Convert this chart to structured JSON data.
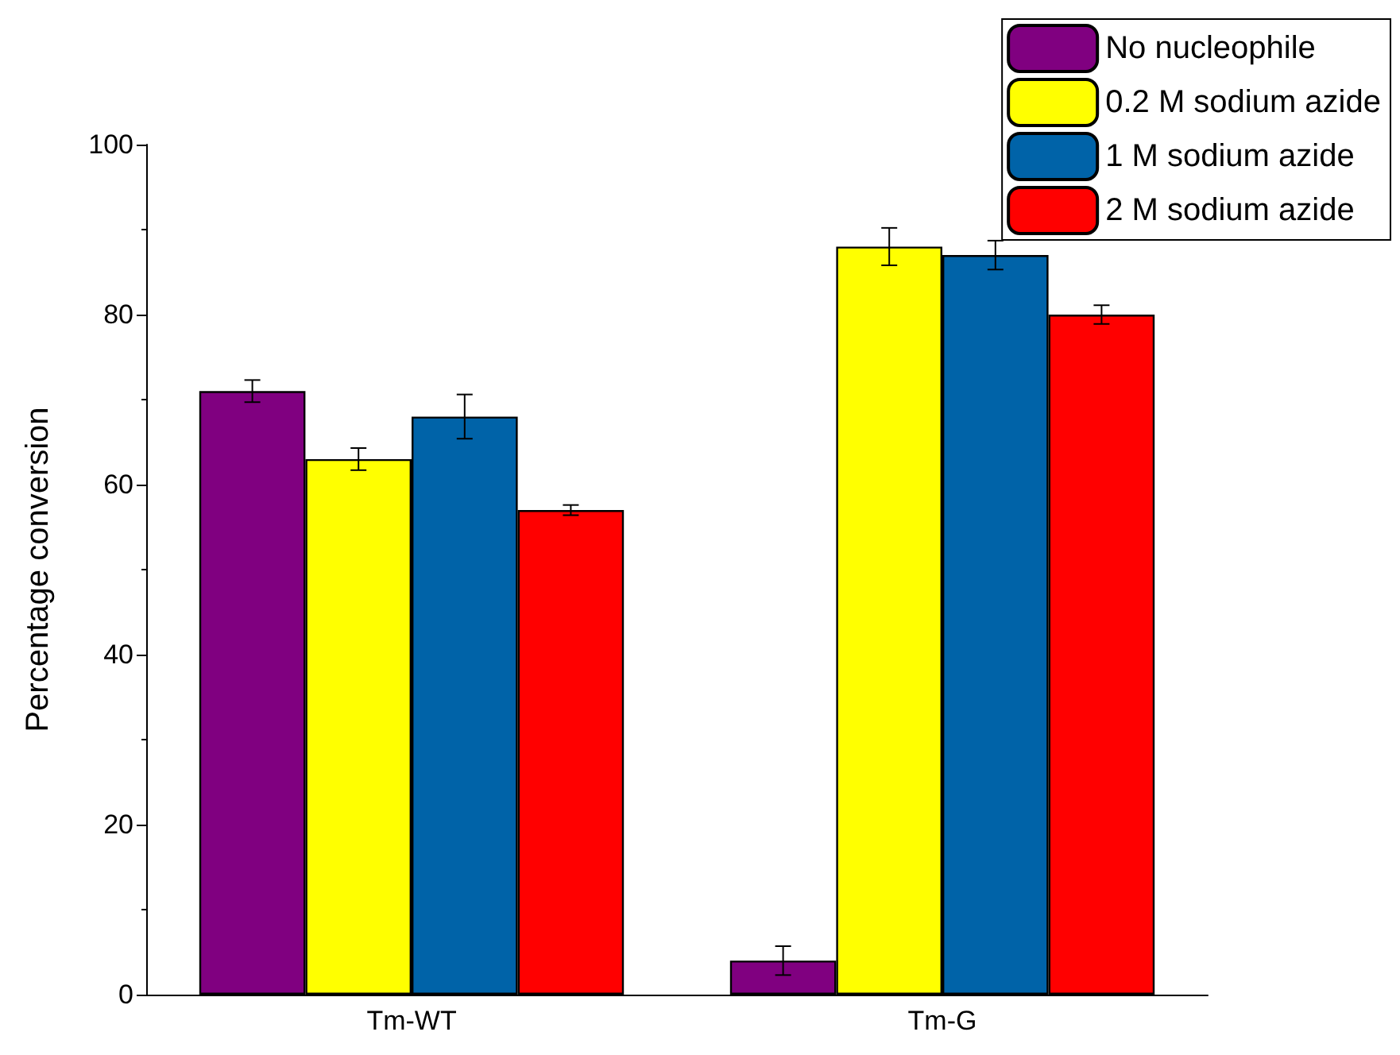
{
  "chart_data": {
    "type": "bar",
    "ylabel": "Percentage conversion",
    "categories": [
      "Tm-WT",
      "Tm-G"
    ],
    "series": [
      {
        "name": "No nucleophile",
        "color": "#800080",
        "values": [
          71,
          4
        ],
        "errors": [
          1.3,
          1.7
        ]
      },
      {
        "name": "0.2 M sodium azide",
        "color": "#ffff00",
        "values": [
          63,
          88
        ],
        "errors": [
          1.3,
          2.2
        ]
      },
      {
        "name": "1 M sodium azide",
        "color": "#0063a8",
        "values": [
          68,
          87
        ],
        "errors": [
          2.6,
          1.7
        ]
      },
      {
        "name": "2 M sodium azide",
        "color": "#ff0000",
        "values": [
          57,
          80
        ],
        "errors": [
          0.6,
          1.1
        ]
      }
    ],
    "ylim": [
      0,
      100
    ],
    "yticks": [
      0,
      20,
      40,
      60,
      80,
      100
    ],
    "grid": false,
    "legend": "top right"
  }
}
